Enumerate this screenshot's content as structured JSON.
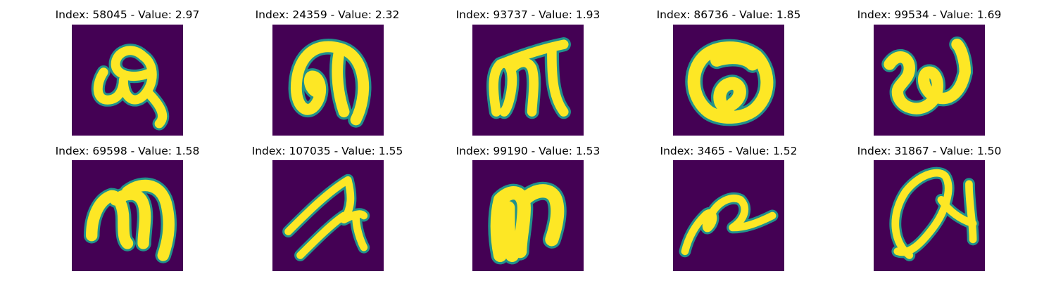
{
  "chart_data": {
    "type": "image_grid",
    "colormap": "viridis",
    "colors": {
      "background": "#440154",
      "edge": "#21918c",
      "stroke": "#fde725"
    },
    "panels": [
      {
        "title": "Index: 58045 - Value: 2.97",
        "index": 58045,
        "value": 2.97
      },
      {
        "title": "Index: 24359 - Value: 2.32",
        "index": 24359,
        "value": 2.32
      },
      {
        "title": "Index: 93737 - Value: 1.93",
        "index": 93737,
        "value": 1.93
      },
      {
        "title": "Index: 86736 - Value: 1.85",
        "index": 86736,
        "value": 1.85
      },
      {
        "title": "Index: 99534 - Value: 1.69",
        "index": 99534,
        "value": 1.69
      },
      {
        "title": "Index: 69598 - Value: 1.58",
        "index": 69598,
        "value": 1.58
      },
      {
        "title": "Index: 107035 - Value: 1.55",
        "index": 107035,
        "value": 1.55
      },
      {
        "title": "Index: 99190 - Value: 1.53",
        "index": 99190,
        "value": 1.53
      },
      {
        "title": "Index: 3465 - Value: 1.52",
        "index": 3465,
        "value": 1.52
      },
      {
        "title": "Index: 31867 - Value: 1.50",
        "index": 31867,
        "value": 1.5
      }
    ]
  }
}
